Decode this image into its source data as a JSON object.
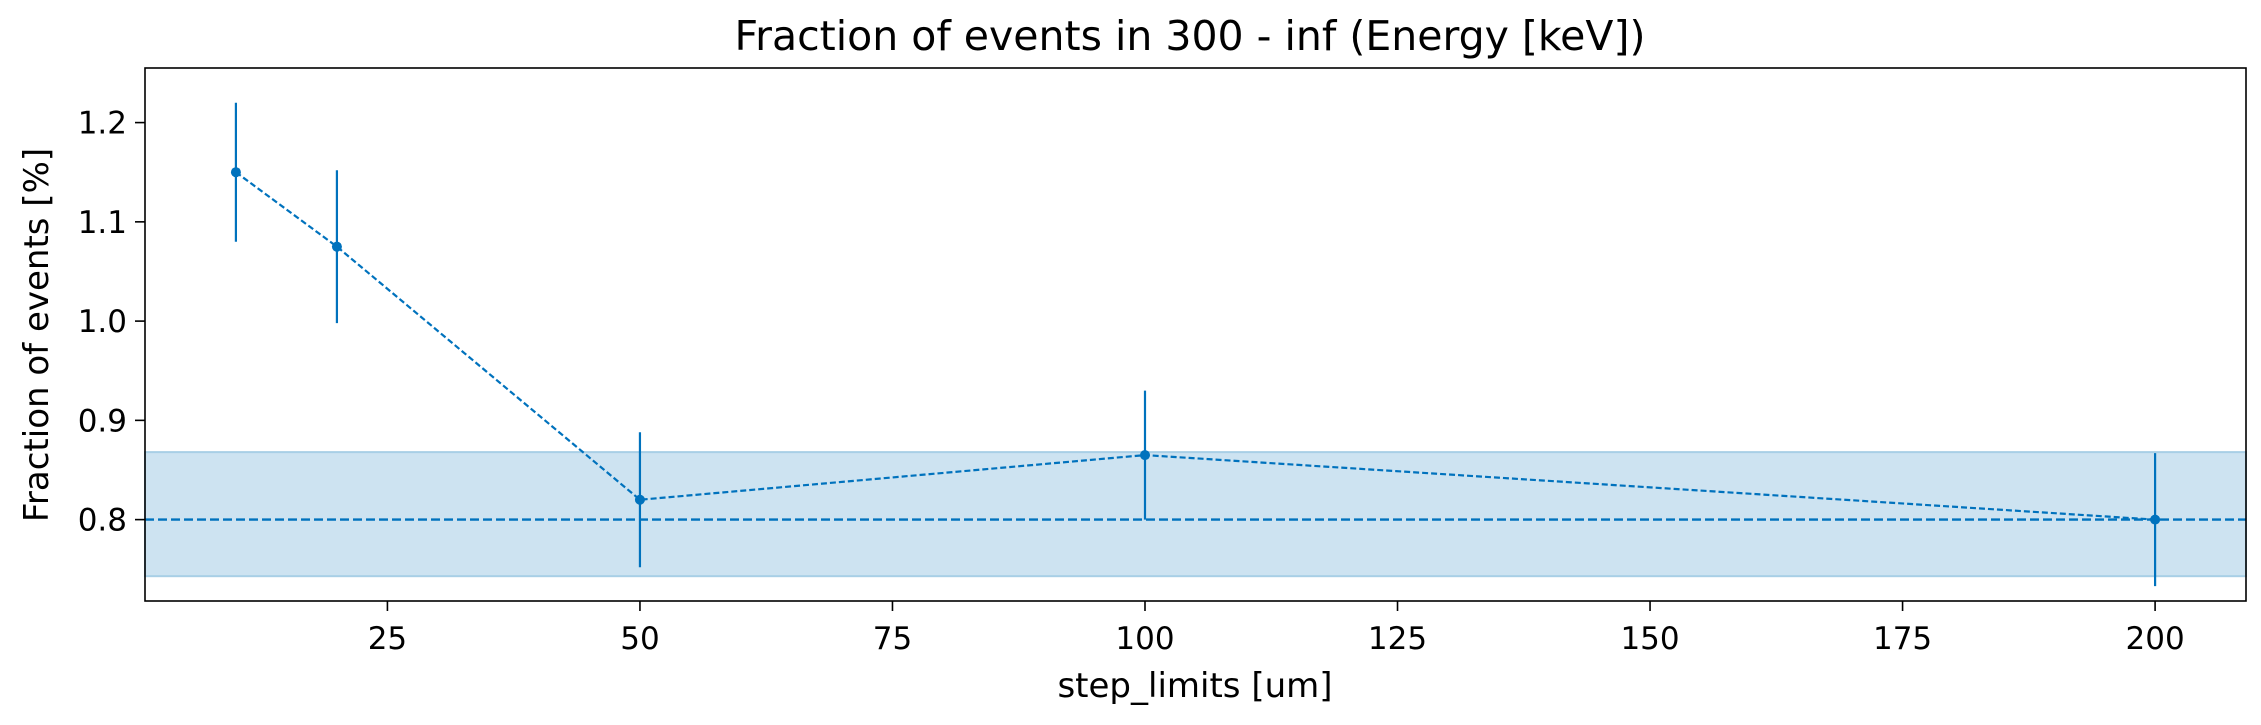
{
  "chart_data": {
    "type": "line",
    "title": "Fraction of events in 300 - inf (Energy [keV])",
    "xlabel": "step_limits [um]",
    "ylabel": "Fraction of events [%]",
    "xlim": [
      1,
      209
    ],
    "ylim": [
      0.718,
      1.255
    ],
    "xticks": [
      25,
      50,
      75,
      100,
      125,
      150,
      175,
      200
    ],
    "yticks": [
      0.8,
      0.9,
      1.0,
      1.1,
      1.2
    ],
    "ytick_labels": [
      "0.8",
      "0.9",
      "1.0",
      "1.1",
      "1.2"
    ],
    "series": [
      {
        "x": [
          10,
          20,
          50,
          100,
          200
        ],
        "y": [
          1.15,
          1.075,
          0.82,
          0.865,
          0.8
        ],
        "yerr": [
          0.07,
          0.077,
          0.068,
          0.065,
          0.067
        ],
        "color": "#0072bd",
        "linestyle": "dashed",
        "marker": "circle"
      }
    ],
    "reference": {
      "y": 0.8,
      "band": [
        0.743,
        0.868
      ],
      "line_color": "#0072bd",
      "band_color": "#cde3f1",
      "band_edge_color": "#a8cfe6"
    },
    "grid": false,
    "legend": "none"
  }
}
